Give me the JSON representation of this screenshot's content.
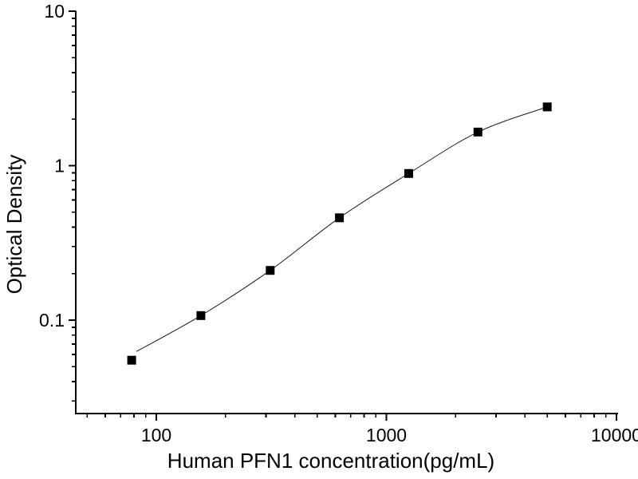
{
  "chart_data": {
    "type": "scatter",
    "title": "",
    "xlabel": "Human PFN1 concentration(pg/mL)",
    "ylabel": "Optical Density",
    "x_scale": "log",
    "y_scale": "log",
    "xlim": [
      44.7,
      10160
    ],
    "ylim": [
      0.0248,
      10.2
    ],
    "x": [
      78.125,
      156.25,
      312.5,
      625,
      1250,
      2500,
      5000
    ],
    "y": [
      0.055,
      0.107,
      0.21,
      0.46,
      0.89,
      1.65,
      2.4
    ],
    "x_ticks": {
      "values": [
        100,
        1000,
        10000
      ],
      "labels": [
        "100",
        "1000",
        "10000"
      ]
    },
    "y_ticks": {
      "values": [
        0.1,
        1,
        10
      ],
      "labels": [
        "0.1",
        "1",
        "10"
      ]
    },
    "grid": false,
    "legend": false,
    "marker": "filled-black-square",
    "line": "thin fitted sigmoid curve",
    "colors": {
      "background": "#ffffff",
      "axis": "#000000",
      "marker": "#000000",
      "line": "#1a1a1a"
    }
  }
}
